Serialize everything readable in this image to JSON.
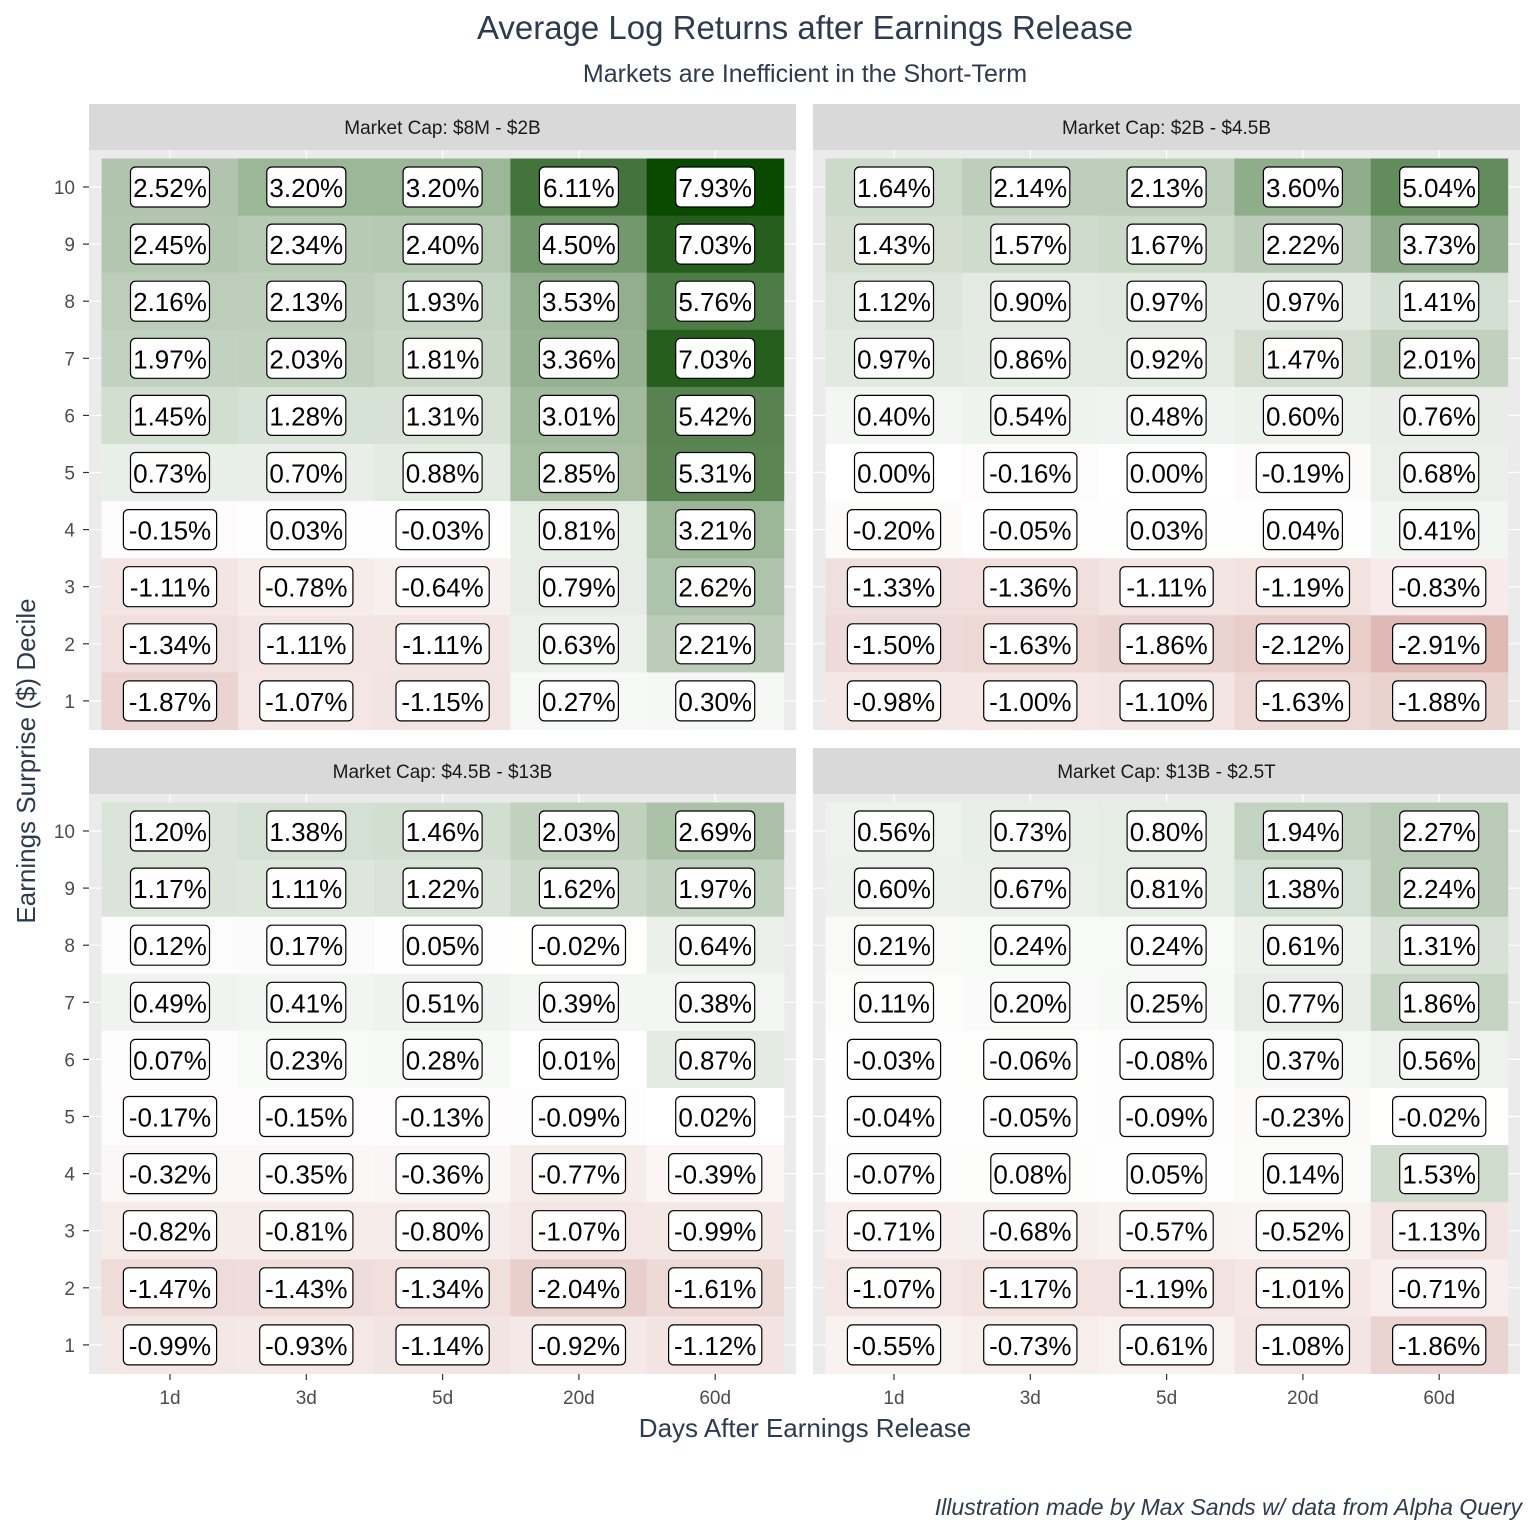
{
  "title": "Average Log Returns after Earnings Release",
  "subtitle": "Markets are Inefficient in the Short-Term",
  "xlabel": "Days After Earnings Release",
  "ylabel": "Earnings Surprise ($) Decile",
  "caption": "Illustration made by Max Sands w/ data from Alpha Query",
  "colors": {
    "positive_max": "#0a4a00",
    "neutral": "#ffffff",
    "negative_max": "#b0564a",
    "panel_background": "#ebebeb",
    "strip_background": "#d9d9d9"
  },
  "chart_data": {
    "type": "heatmap",
    "x_categories": [
      "1d",
      "3d",
      "5d",
      "20d",
      "60d"
    ],
    "y_categories": [
      "1",
      "2",
      "3",
      "4",
      "5",
      "6",
      "7",
      "8",
      "9",
      "10"
    ],
    "value_unit": "%",
    "grid": true,
    "panels": [
      {
        "facet_label": "Market Cap: $8M - $2B",
        "values": [
          [
            -1.87,
            -1.07,
            -1.15,
            0.27,
            0.3
          ],
          [
            -1.34,
            -1.11,
            -1.11,
            0.63,
            2.21
          ],
          [
            -1.11,
            -0.78,
            -0.64,
            0.79,
            2.62
          ],
          [
            -0.15,
            0.03,
            -0.03,
            0.81,
            3.21
          ],
          [
            0.73,
            0.7,
            0.88,
            2.85,
            5.31
          ],
          [
            1.45,
            1.28,
            1.31,
            3.01,
            5.42
          ],
          [
            1.97,
            2.03,
            1.81,
            3.36,
            7.03
          ],
          [
            2.16,
            2.13,
            1.93,
            3.53,
            5.76
          ],
          [
            2.45,
            2.34,
            2.4,
            4.5,
            7.03
          ],
          [
            2.52,
            3.2,
            3.2,
            6.11,
            7.93
          ]
        ]
      },
      {
        "facet_label": "Market Cap: $2B - $4.5B",
        "values": [
          [
            -0.98,
            -1.0,
            -1.1,
            -1.63,
            -1.88
          ],
          [
            -1.5,
            -1.63,
            -1.86,
            -2.12,
            -2.91
          ],
          [
            -1.33,
            -1.36,
            -1.11,
            -1.19,
            -0.83
          ],
          [
            -0.2,
            -0.05,
            0.03,
            0.04,
            0.41
          ],
          [
            0.0,
            -0.16,
            0.0,
            -0.19,
            0.68
          ],
          [
            0.4,
            0.54,
            0.48,
            0.6,
            0.76
          ],
          [
            0.97,
            0.86,
            0.92,
            1.47,
            2.01
          ],
          [
            1.12,
            0.9,
            0.97,
            0.97,
            1.41
          ],
          [
            1.43,
            1.57,
            1.67,
            2.22,
            3.73
          ],
          [
            1.64,
            2.14,
            2.13,
            3.6,
            5.04
          ]
        ]
      },
      {
        "facet_label": "Market Cap: $4.5B - $13B",
        "values": [
          [
            -0.99,
            -0.93,
            -1.14,
            -0.92,
            -1.12
          ],
          [
            -1.47,
            -1.43,
            -1.34,
            -2.04,
            -1.61
          ],
          [
            -0.82,
            -0.81,
            -0.8,
            -1.07,
            -0.99
          ],
          [
            -0.32,
            -0.35,
            -0.36,
            -0.77,
            -0.39
          ],
          [
            -0.17,
            -0.15,
            -0.13,
            -0.09,
            0.02
          ],
          [
            0.07,
            0.23,
            0.28,
            0.01,
            0.87
          ],
          [
            0.49,
            0.41,
            0.51,
            0.39,
            0.38
          ],
          [
            0.12,
            0.17,
            0.05,
            -0.02,
            0.64
          ],
          [
            1.17,
            1.11,
            1.22,
            1.62,
            1.97
          ],
          [
            1.2,
            1.38,
            1.46,
            2.03,
            2.69
          ]
        ]
      },
      {
        "facet_label": "Market Cap: $13B - $2.5T",
        "values": [
          [
            -0.55,
            -0.73,
            -0.61,
            -1.08,
            -1.86
          ],
          [
            -1.07,
            -1.17,
            -1.19,
            -1.01,
            -0.71
          ],
          [
            -0.71,
            -0.68,
            -0.57,
            -0.52,
            -1.13
          ],
          [
            -0.07,
            0.08,
            0.05,
            0.14,
            1.53
          ],
          [
            -0.04,
            -0.05,
            -0.09,
            -0.23,
            -0.02
          ],
          [
            -0.03,
            -0.06,
            -0.08,
            0.37,
            0.56
          ],
          [
            0.11,
            0.2,
            0.25,
            0.77,
            1.86
          ],
          [
            0.21,
            0.24,
            0.24,
            0.61,
            1.31
          ],
          [
            0.6,
            0.67,
            0.81,
            1.38,
            2.24
          ],
          [
            0.56,
            0.73,
            0.8,
            1.94,
            2.27
          ]
        ]
      }
    ]
  }
}
